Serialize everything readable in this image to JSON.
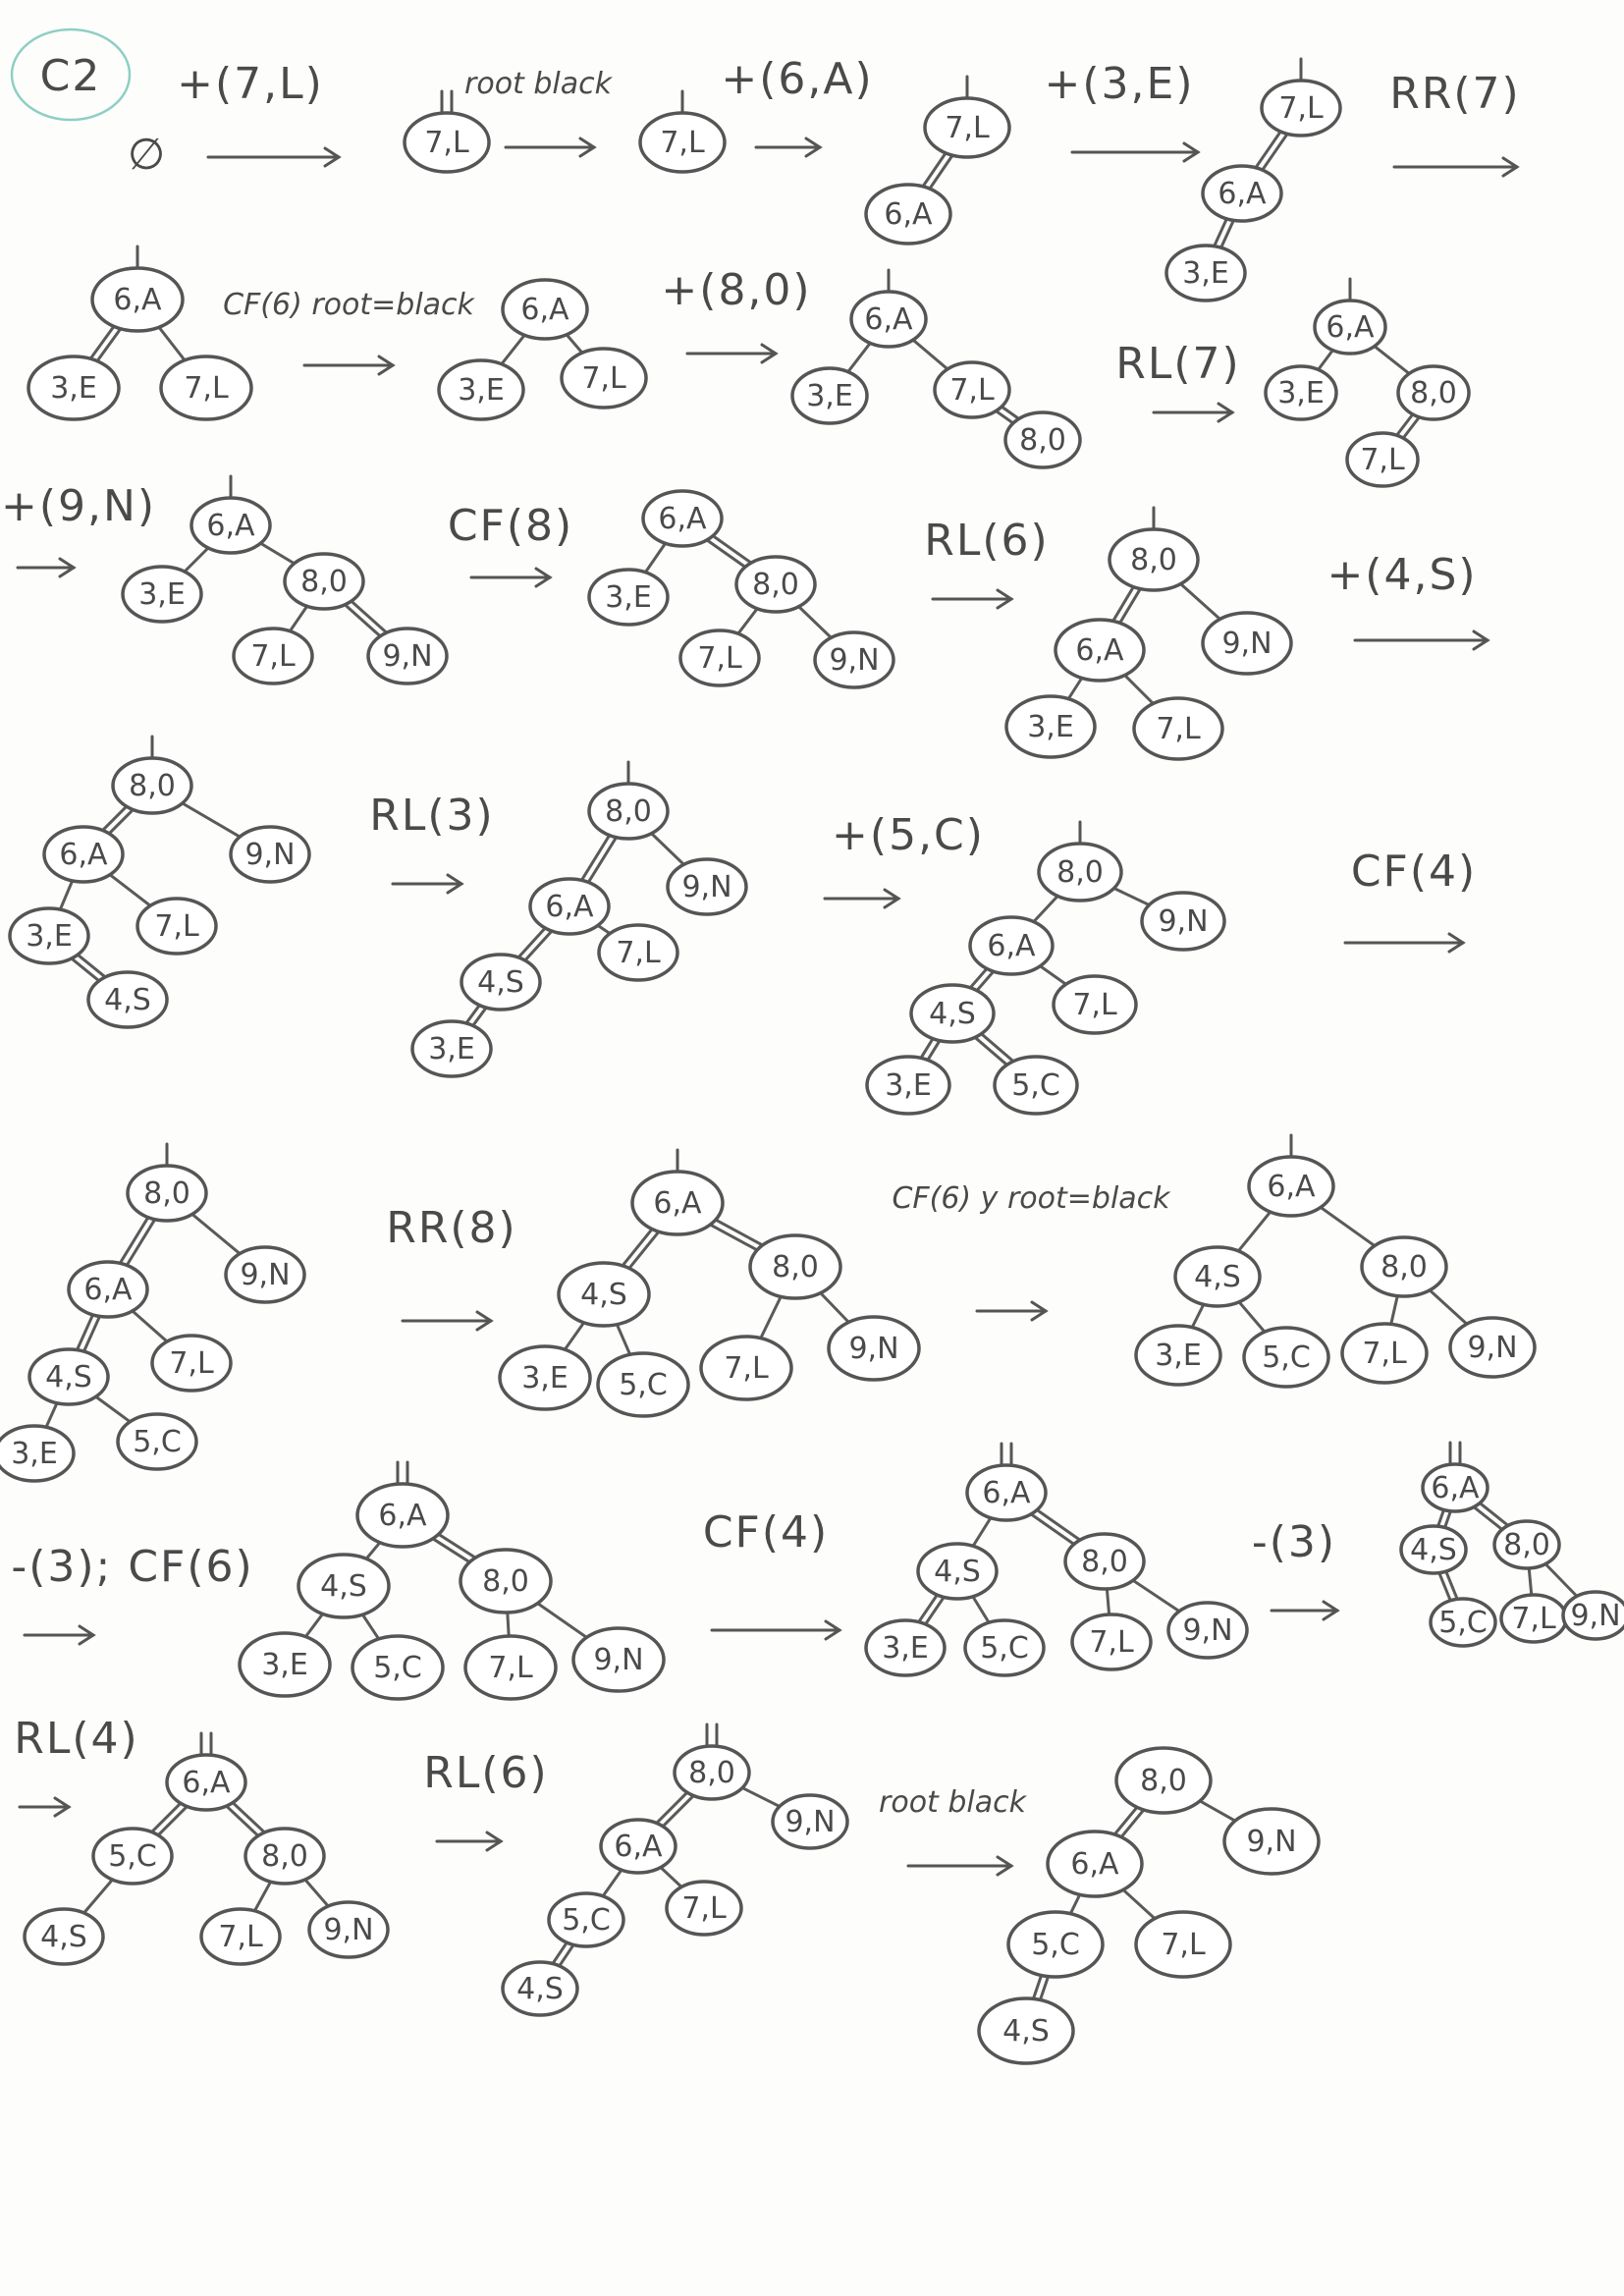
{
  "page": {
    "tag": "C2",
    "empty_symbol": "∅",
    "colors": {
      "ink": "#4a4a4a",
      "accent": "#8ecfc3"
    }
  },
  "labels": [
    "+(7,L)",
    "root black",
    "+(6,A)",
    "+(3,E)",
    "RR(7)",
    "CF(6) root=black",
    "+(8,0)",
    "RL(7)",
    "+(9,N)",
    "CF(8)",
    "RL(6)",
    "+(4,S)",
    "RL(3)",
    "+(5,C)",
    "CF(4)",
    "RR(8)",
    "CF(6) y root=black",
    "-(3); CF(6)",
    "CF(4)",
    "-(3)",
    "RL(4)",
    "RL(6)",
    "root black"
  ],
  "trees": [
    {
      "nodes": [
        "7,L"
      ]
    },
    {
      "nodes": [
        "7,L"
      ]
    },
    {
      "nodes": [
        "7,L",
        "6,A"
      ]
    },
    {
      "nodes": [
        "7,L",
        "6,A",
        "3,E"
      ]
    },
    {
      "nodes": [
        "6,A",
        "3,E",
        "7,L"
      ]
    },
    {
      "nodes": [
        "6,A",
        "3,E",
        "7,L"
      ]
    },
    {
      "nodes": [
        "6,A",
        "3,E",
        "7,L",
        "8,0"
      ]
    },
    {
      "nodes": [
        "6,A",
        "3,E",
        "8,0",
        "7,L"
      ]
    },
    {
      "nodes": [
        "6,A",
        "3,E",
        "8,0",
        "7,L",
        "9,N"
      ]
    },
    {
      "nodes": [
        "6,A",
        "3,E",
        "8,0",
        "7,L",
        "9,N"
      ]
    },
    {
      "nodes": [
        "8,0",
        "6,A",
        "9,N",
        "3,E",
        "7,L"
      ]
    },
    {
      "nodes": [
        "8,0",
        "6,A",
        "9,N",
        "3,E",
        "7,L",
        "4,S"
      ]
    },
    {
      "nodes": [
        "8,0",
        "6,A",
        "9,N",
        "4,S",
        "7,L",
        "3,E"
      ]
    },
    {
      "nodes": [
        "8,0",
        "6,A",
        "9,N",
        "4,S",
        "7,L",
        "3,E",
        "5,C"
      ]
    },
    {
      "nodes": [
        "8,0",
        "6,A",
        "9,N",
        "4,S",
        "7,L",
        "3,E",
        "5,C"
      ]
    },
    {
      "nodes": [
        "6,A",
        "4,S",
        "8,0",
        "3,E",
        "5,C",
        "7,L",
        "9,N"
      ]
    },
    {
      "nodes": [
        "6,A",
        "4,S",
        "8,0",
        "3,E",
        "5,C",
        "7,L",
        "9,N"
      ]
    },
    {
      "nodes": [
        "6,A",
        "4,S",
        "8,0",
        "3,E",
        "5,C",
        "7,L",
        "9,N"
      ]
    },
    {
      "nodes": [
        "6,A",
        "4,S",
        "8,0",
        "3,E",
        "5,C",
        "7,L",
        "9,N"
      ]
    },
    {
      "nodes": [
        "6,A",
        "4,S",
        "8,0",
        "5,C",
        "7,L",
        "9,N"
      ]
    },
    {
      "nodes": [
        "6,A",
        "5,C",
        "8,0",
        "4,S",
        "7,L",
        "9,N"
      ]
    },
    {
      "nodes": [
        "8,0",
        "6,A",
        "9,N",
        "5,C",
        "7,L",
        "4,S"
      ]
    },
    {
      "nodes": [
        "8,0",
        "6,A",
        "9,N",
        "5,C",
        "7,L",
        "4,S"
      ]
    }
  ]
}
